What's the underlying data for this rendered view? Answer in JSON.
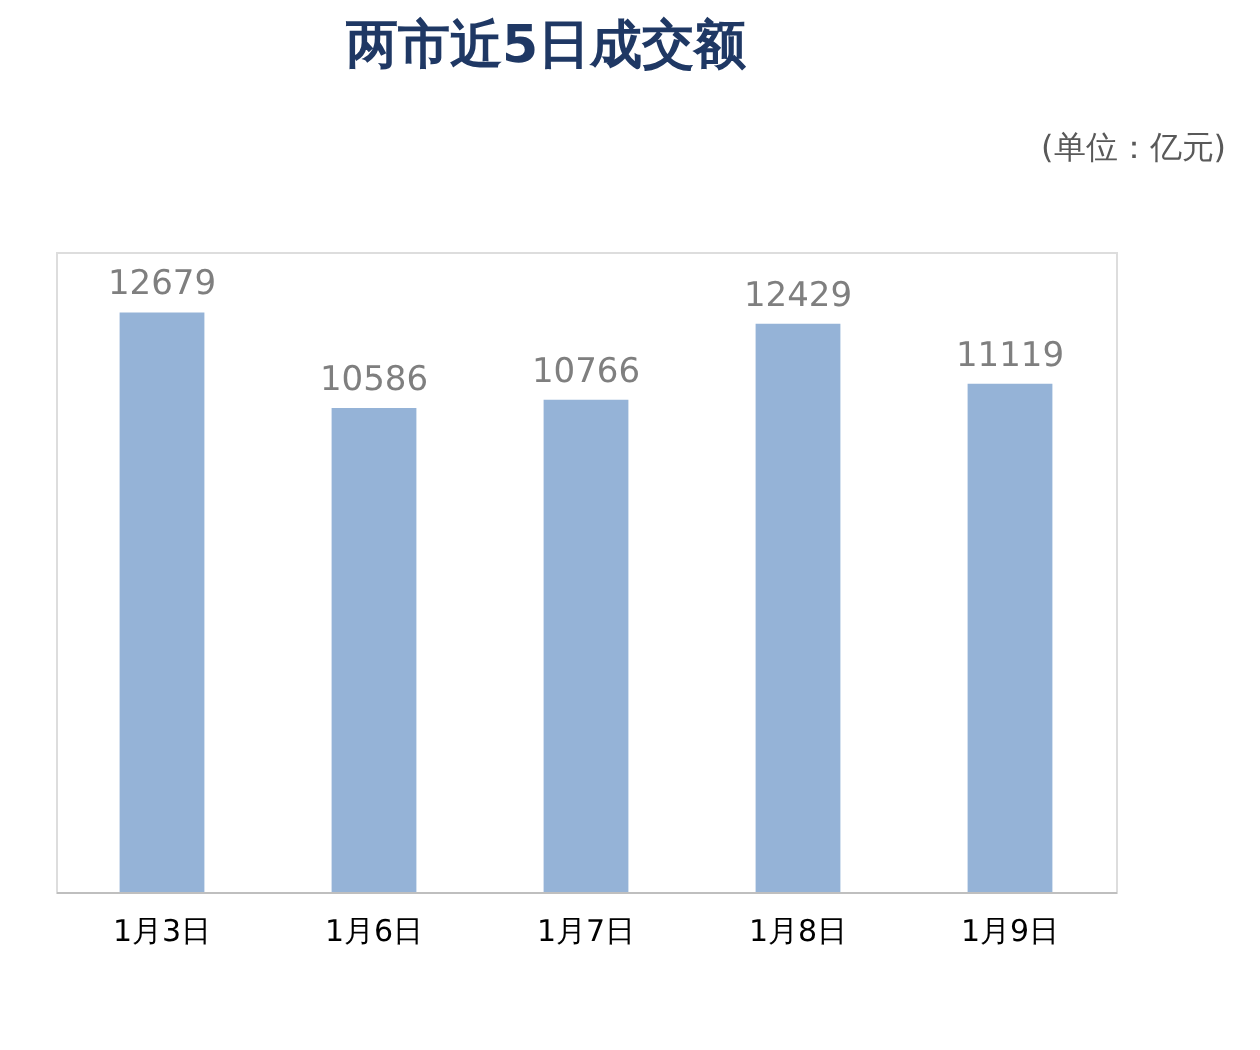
{
  "chart_data": {
    "type": "bar",
    "title": "两市近5日成交额",
    "annotations": [
      "(单位：亿元)"
    ],
    "categories": [
      "1月3日",
      "1月6日",
      "1月7日",
      "1月8日",
      "1月9日"
    ],
    "values": [
      12679,
      10586,
      10766,
      12429,
      11119
    ],
    "color": "#95b3d7",
    "ylim": [
      0,
      14000
    ],
    "tick_labels": "x",
    "data_labels": true,
    "grid": false
  }
}
